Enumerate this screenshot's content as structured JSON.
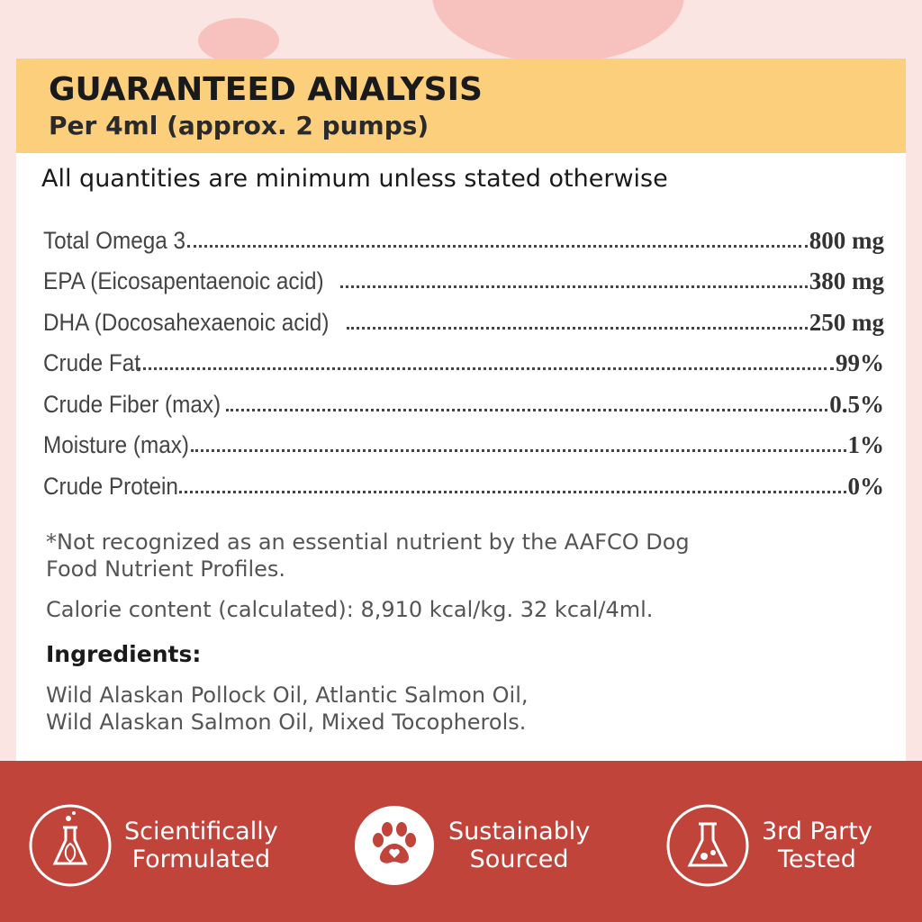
{
  "header": {
    "title": "GUARANTEED ANALYSIS",
    "subtitle": "Per 4ml (approx. 2 pumps)"
  },
  "note": "All quantities are minimum unless stated otherwise",
  "table": {
    "rows": [
      [
        "Total Omega 3",
        "800 mg"
      ],
      [
        "EPA (Eicosapentaenoic acid)",
        "380 mg"
      ],
      [
        "DHA (Docosahexaenoic acid)",
        "250 mg"
      ],
      [
        "Crude Fat",
        "99%"
      ],
      [
        "Crude Fiber (max)",
        "0.5%"
      ],
      [
        "Moisture (max)",
        "1%"
      ],
      [
        "Crude Protein",
        "0%"
      ]
    ]
  },
  "footnote": [
    "*Not recognized as an essential nutrient by the AAFCO Dog",
    "Food Nutrient Profiles."
  ],
  "calorie": "Calorie content (calculated): 8,910 kcal/kg. 32 kcal/4ml.",
  "ingredients": {
    "heading": "Ingredients:",
    "lines": [
      "Wild Alaskan Pollock Oil, Atlantic Salmon Oil,",
      "Wild Alaskan Salmon Oil, Mixed Tocopherols."
    ]
  },
  "badges": [
    [
      "Scientifically",
      "Formulated"
    ],
    [
      "Sustainably",
      "Sourced"
    ],
    [
      "3rd Party",
      "Tested"
    ]
  ]
}
